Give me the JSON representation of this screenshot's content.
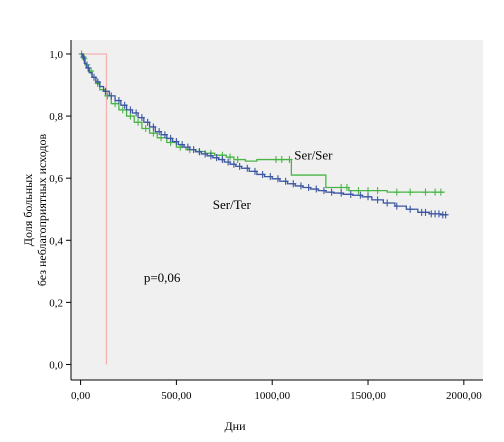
{
  "chart_data": {
    "type": "line",
    "step": true,
    "xlabel": "Дни",
    "ylabel": [
      "Доля больных",
      "без неблагоприятных исходов"
    ],
    "xlim": [
      -50,
      2100
    ],
    "ylim": [
      -0.05,
      1.045
    ],
    "x_ticks": [
      0,
      500,
      1000,
      1500,
      2000
    ],
    "x_tick_labels": [
      "0,00",
      "500,00",
      "1000,00",
      "1500,00",
      "2000,00"
    ],
    "y_ticks": [
      0,
      0.2,
      0.4,
      0.6,
      0.8,
      1.0
    ],
    "y_tick_labels": [
      "0,0",
      "0,2",
      "0,4",
      "0,6",
      "0,8",
      "1,0"
    ],
    "grid": false,
    "background": "#f0f0f0",
    "annotations": [
      {
        "text": "Ser/Ser",
        "x": 1115,
        "y": 0.66
      },
      {
        "text": "Ser/Ter",
        "x": 690,
        "y": 0.5
      },
      {
        "text": "p=0,06",
        "x": 330,
        "y": 0.265
      }
    ],
    "series": [
      {
        "color": "#3c57a1",
        "x": [
          0,
          10,
          20,
          30,
          45,
          60,
          80,
          100,
          120,
          150,
          180,
          210,
          240,
          270,
          300,
          330,
          360,
          390,
          420,
          450,
          480,
          510,
          540,
          570,
          600,
          630,
          660,
          690,
          720,
          750,
          780,
          810,
          840,
          880,
          920,
          960,
          1000,
          1040,
          1080,
          1120,
          1160,
          1200,
          1240,
          1280,
          1320,
          1370,
          1420,
          1470,
          1520,
          1580,
          1640,
          1700,
          1760,
          1820,
          1880,
          1910
        ],
        "y": [
          1.0,
          0.99,
          0.97,
          0.955,
          0.94,
          0.925,
          0.91,
          0.895,
          0.88,
          0.865,
          0.85,
          0.835,
          0.82,
          0.81,
          0.795,
          0.78,
          0.765,
          0.75,
          0.74,
          0.728,
          0.718,
          0.708,
          0.7,
          0.692,
          0.685,
          0.678,
          0.672,
          0.666,
          0.66,
          0.652,
          0.645,
          0.638,
          0.632,
          0.622,
          0.612,
          0.605,
          0.598,
          0.59,
          0.582,
          0.575,
          0.57,
          0.565,
          0.56,
          0.555,
          0.552,
          0.548,
          0.545,
          0.54,
          0.53,
          0.52,
          0.51,
          0.5,
          0.49,
          0.485,
          0.482,
          0.48
        ],
        "censored": [
          15,
          40,
          70,
          90,
          130,
          160,
          200,
          230,
          260,
          290,
          320,
          350,
          380,
          410,
          440,
          470,
          500,
          530,
          560,
          590,
          620,
          650,
          680,
          710,
          740,
          770,
          800,
          830,
          870,
          910,
          950,
          990,
          1030,
          1070,
          1110,
          1150,
          1190,
          1230,
          1270,
          1310,
          1360,
          1410,
          1460,
          1500,
          1550,
          1600,
          1650,
          1720,
          1780,
          1800,
          1830,
          1850,
          1870,
          1890,
          1905
        ]
      },
      {
        "color": "#48b545",
        "x": [
          0,
          10,
          25,
          40,
          60,
          80,
          100,
          130,
          160,
          200,
          240,
          280,
          320,
          360,
          400,
          450,
          500,
          550,
          600,
          650,
          700,
          760,
          800,
          860,
          920,
          1000,
          1100,
          1280,
          1400,
          1600,
          1900
        ],
        "y": [
          1.0,
          0.985,
          0.965,
          0.945,
          0.925,
          0.905,
          0.885,
          0.865,
          0.84,
          0.82,
          0.8,
          0.78,
          0.76,
          0.745,
          0.73,
          0.715,
          0.7,
          0.692,
          0.686,
          0.68,
          0.674,
          0.668,
          0.66,
          0.655,
          0.66,
          0.66,
          0.61,
          0.57,
          0.56,
          0.555,
          0.555
        ],
        "censored": [
          5,
          20,
          35,
          55,
          90,
          140,
          180,
          220,
          260,
          300,
          340,
          380,
          420,
          470,
          520,
          570,
          620,
          680,
          740,
          780,
          820,
          1020,
          1050,
          1090,
          1360,
          1390,
          1450,
          1500,
          1550,
          1650,
          1720,
          1800,
          1850,
          1880
        ]
      },
      {
        "color": "#f4b1b0",
        "x": [
          0,
          135,
          135
        ],
        "y": [
          1.0,
          1.0,
          0.0
        ],
        "censored": []
      }
    ]
  }
}
